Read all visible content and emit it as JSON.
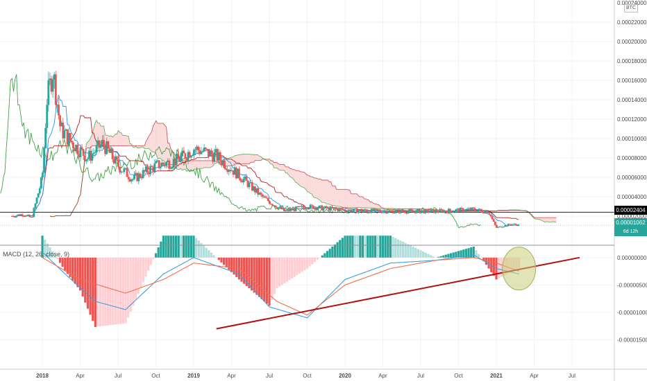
{
  "chart_data": [
    {
      "type": "line",
      "subtype": "candlestick_with_ichimoku",
      "currency_badge": "BTC",
      "price_axis": {
        "labels": [
          "0.00022000",
          "0.00020000",
          "0.00018000",
          "0.00016000",
          "0.00014000",
          "0.00012000",
          "0.00010000",
          "0.00008000",
          "0.00006000",
          "0.00004000",
          "0.00002000"
        ],
        "values": [
          0.00022,
          0.0002,
          0.00018,
          0.00016,
          0.00014,
          0.00012,
          0.0001,
          8e-05,
          6e-05,
          4e-05,
          2e-05
        ],
        "top_label": "0.00024000",
        "range": [
          0.0,
          0.00024
        ]
      },
      "time_axis": {
        "labels": [
          "2018",
          "Apr",
          "Jul",
          "Oct",
          "2019",
          "Apr",
          "Jul",
          "Oct",
          "2020",
          "Apr",
          "Jul",
          "Oct",
          "2021",
          "Apr",
          "Jul"
        ],
        "bold": [
          "2018",
          "2019",
          "2020",
          "2021"
        ]
      },
      "horizontal_line": {
        "value": 2.404e-05,
        "label": "0.00002404"
      },
      "last_price": {
        "value": 1.062e-05,
        "label": "0.00001062",
        "countdown": "6d 12h"
      },
      "price_series": [
        {
          "t": 2017.8,
          "v": 2e-05
        },
        {
          "t": 2017.87,
          "v": 2.2e-05
        },
        {
          "t": 2017.93,
          "v": 1.8e-05
        },
        {
          "t": 2018.0,
          "v": 6e-05
        },
        {
          "t": 2018.03,
          "v": 0.00014
        },
        {
          "t": 2018.07,
          "v": 0.00017
        },
        {
          "t": 2018.12,
          "v": 0.00011
        },
        {
          "t": 2018.2,
          "v": 9.5e-05
        },
        {
          "t": 2018.3,
          "v": 8e-05
        },
        {
          "t": 2018.4,
          "v": 9.5e-05
        },
        {
          "t": 2018.5,
          "v": 7.2e-05
        },
        {
          "t": 2018.6,
          "v": 5.8e-05
        },
        {
          "t": 2018.75,
          "v": 7.2e-05
        },
        {
          "t": 2018.9,
          "v": 7.8e-05
        },
        {
          "t": 2019.0,
          "v": 9e-05
        },
        {
          "t": 2019.15,
          "v": 8.2e-05
        },
        {
          "t": 2019.3,
          "v": 6.2e-05
        },
        {
          "t": 2019.45,
          "v": 4e-05
        },
        {
          "t": 2019.6,
          "v": 2.5e-05
        },
        {
          "t": 2019.75,
          "v": 3e-05
        },
        {
          "t": 2020.0,
          "v": 2.6e-05
        },
        {
          "t": 2020.3,
          "v": 2.5e-05
        },
        {
          "t": 2020.6,
          "v": 2.5e-05
        },
        {
          "t": 2020.85,
          "v": 2.7e-05
        },
        {
          "t": 2020.95,
          "v": 2.4e-05
        },
        {
          "t": 2021.0,
          "v": 8e-06
        },
        {
          "t": 2021.1,
          "v": 1.2e-05
        },
        {
          "t": 2021.15,
          "v": 1.06e-05
        }
      ]
    },
    {
      "type": "bar",
      "subtype": "macd",
      "title": "MACD (12, 26, close, 9)",
      "axis": {
        "labels": [
          "0.00000000",
          "-0.00000500",
          "-0.00001000",
          "-0.00001500"
        ],
        "values": [
          0,
          -5e-06,
          -1e-05,
          -1.5e-05
        ],
        "range": [
          -2e-05,
          2e-06
        ]
      },
      "series": [
        {
          "name": "MACD",
          "color": "#3b9fde",
          "points": [
            {
              "t": 2018.0,
              "v": 1e-06
            },
            {
              "t": 2018.15,
              "v": -3e-06
            },
            {
              "t": 2018.35,
              "v": -8e-06
            },
            {
              "t": 2018.55,
              "v": -9.5e-06
            },
            {
              "t": 2018.8,
              "v": -3e-06
            },
            {
              "t": 2019.0,
              "v": 0.0
            },
            {
              "t": 2019.3,
              "v": -3e-06
            },
            {
              "t": 2019.5,
              "v": -9e-06
            },
            {
              "t": 2019.75,
              "v": -1.1e-05
            },
            {
              "t": 2020.0,
              "v": -4e-06
            },
            {
              "t": 2020.3,
              "v": -1e-06
            },
            {
              "t": 2020.6,
              "v": -5e-07
            },
            {
              "t": 2020.85,
              "v": 5e-07
            },
            {
              "t": 2021.0,
              "v": -2e-06
            },
            {
              "t": 2021.15,
              "v": -3e-06
            }
          ]
        },
        {
          "name": "Signal",
          "color": "#f0704a",
          "points": [
            {
              "t": 2018.0,
              "v": 0.0
            },
            {
              "t": 2018.25,
              "v": -4e-06
            },
            {
              "t": 2018.55,
              "v": -6.5e-06
            },
            {
              "t": 2018.8,
              "v": -4e-06
            },
            {
              "t": 2019.0,
              "v": -1e-06
            },
            {
              "t": 2019.3,
              "v": -2e-06
            },
            {
              "t": 2019.55,
              "v": -8e-06
            },
            {
              "t": 2019.75,
              "v": -1.05e-05
            },
            {
              "t": 2020.0,
              "v": -5e-06
            },
            {
              "t": 2020.3,
              "v": -2e-06
            },
            {
              "t": 2020.6,
              "v": -5e-07
            },
            {
              "t": 2020.85,
              "v": 0.0
            },
            {
              "t": 2021.0,
              "v": -1e-06
            },
            {
              "t": 2021.15,
              "v": -2.5e-06
            }
          ]
        }
      ],
      "annotations": [
        {
          "kind": "trendline",
          "color": "#b01010",
          "from": {
            "t": 2019.15,
            "v": -1.3e-05
          },
          "to": {
            "t": 2021.55,
            "v": 0.0
          }
        },
        {
          "kind": "ellipse",
          "color": "#c8d07a",
          "center": {
            "t": 2021.15,
            "v": -2e-06
          }
        }
      ]
    }
  ],
  "colors": {
    "up": "#26a69a",
    "down": "#ef5350",
    "conversion_line": "#2196f3",
    "base_line": "#b71c1c",
    "lagging_span": "#43a047",
    "cloud_fill": "#f8c5c5",
    "hline": "#222222",
    "grid": "#f0f3f6"
  }
}
